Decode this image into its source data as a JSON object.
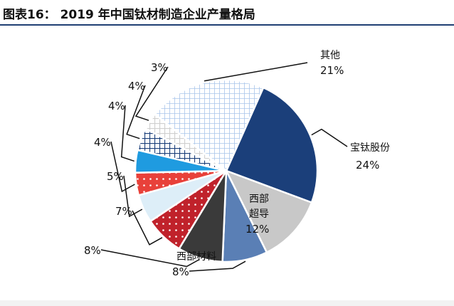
{
  "header": {
    "title": "图表16： 2019 年中国钛材制造企业产量格局"
  },
  "chart_data": {
    "type": "pie",
    "title": "",
    "start_angle_deg": 24,
    "direction": "clockwise",
    "slices": [
      {
        "label": "宝钛股份",
        "value": 24,
        "text": "24%",
        "color": "#1b3f7a",
        "pattern": "solid"
      },
      {
        "label": "西部超导",
        "value": 12,
        "text": "12%",
        "color": "#c8c8c8",
        "pattern": "solid"
      },
      {
        "label": "西部材料",
        "value": 8,
        "text": "8%",
        "color": "#5a7fb5",
        "pattern": "solid"
      },
      {
        "label": "",
        "value": 8,
        "text": "8%",
        "color": "#3a3a3a",
        "pattern": "solid"
      },
      {
        "label": "",
        "value": 7,
        "text": "7%",
        "color": "#c0222b",
        "pattern": "dots"
      },
      {
        "label": "",
        "value": 5,
        "text": "5%",
        "color": "#ddeef8",
        "pattern": "solid"
      },
      {
        "label": "",
        "value": 4,
        "text": "4%",
        "color": "#e8413a",
        "pattern": "dots"
      },
      {
        "label": "",
        "value": 4,
        "text": "4%",
        "color": "#1f9be0",
        "pattern": "solid"
      },
      {
        "label": "",
        "value": 4,
        "text": "4%",
        "color": "#1b3f7a",
        "pattern": "crosshatch"
      },
      {
        "label": "",
        "value": 3,
        "text": "3%",
        "color": "#cfcfcf",
        "pattern": "crosshatch"
      },
      {
        "label": "其他",
        "value": 21,
        "text": "21%",
        "color": "#a9c5ea",
        "pattern": "grid"
      }
    ]
  }
}
